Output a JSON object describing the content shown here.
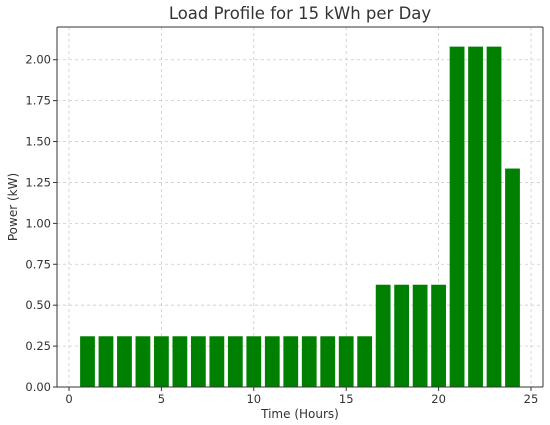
{
  "chart_data": {
    "type": "bar",
    "title": "Load Profile for 15 kWh per Day",
    "xlabel": "Time (Hours)",
    "ylabel": "Power (kW)",
    "x": [
      1,
      2,
      3,
      4,
      5,
      6,
      7,
      8,
      9,
      10,
      11,
      12,
      13,
      14,
      15,
      16,
      17,
      18,
      19,
      20,
      21,
      22,
      23,
      24
    ],
    "values": [
      0.31,
      0.31,
      0.31,
      0.31,
      0.31,
      0.31,
      0.31,
      0.31,
      0.31,
      0.31,
      0.31,
      0.31,
      0.31,
      0.31,
      0.31,
      0.31,
      0.625,
      0.625,
      0.625,
      0.625,
      2.08,
      2.08,
      2.08,
      1.335
    ],
    "xlim": [
      -0.65,
      25.65
    ],
    "ylim": [
      0,
      2.2
    ],
    "xticks": [
      0,
      5,
      10,
      15,
      20,
      25
    ],
    "yticks": [
      0.0,
      0.25,
      0.5,
      0.75,
      1.0,
      1.25,
      1.5,
      1.75,
      2.0
    ],
    "xtick_labels": [
      "0",
      "5",
      "10",
      "15",
      "20",
      "25"
    ],
    "ytick_labels": [
      "0.00",
      "0.25",
      "0.50",
      "0.75",
      "1.00",
      "1.25",
      "1.50",
      "1.75",
      "2.00"
    ],
    "bar_color": "#008000",
    "grid": true,
    "bar_width": 0.8
  }
}
